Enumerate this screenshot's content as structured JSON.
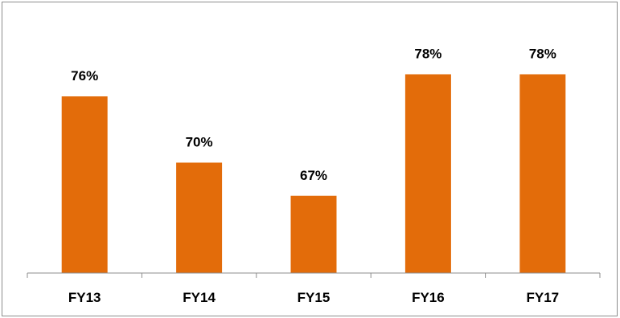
{
  "chart_data": {
    "type": "bar",
    "categories": [
      "FY13",
      "FY14",
      "FY15",
      "FY16",
      "FY17"
    ],
    "values": [
      76,
      70,
      67,
      78,
      78
    ],
    "data_labels": [
      "76%",
      "70%",
      "67%",
      "78%",
      "78%"
    ],
    "ylim": [
      60,
      80
    ],
    "grid": false,
    "legend": "none",
    "colors": {
      "bar": "#E36C0A",
      "axis": "#8c8c8c"
    }
  }
}
